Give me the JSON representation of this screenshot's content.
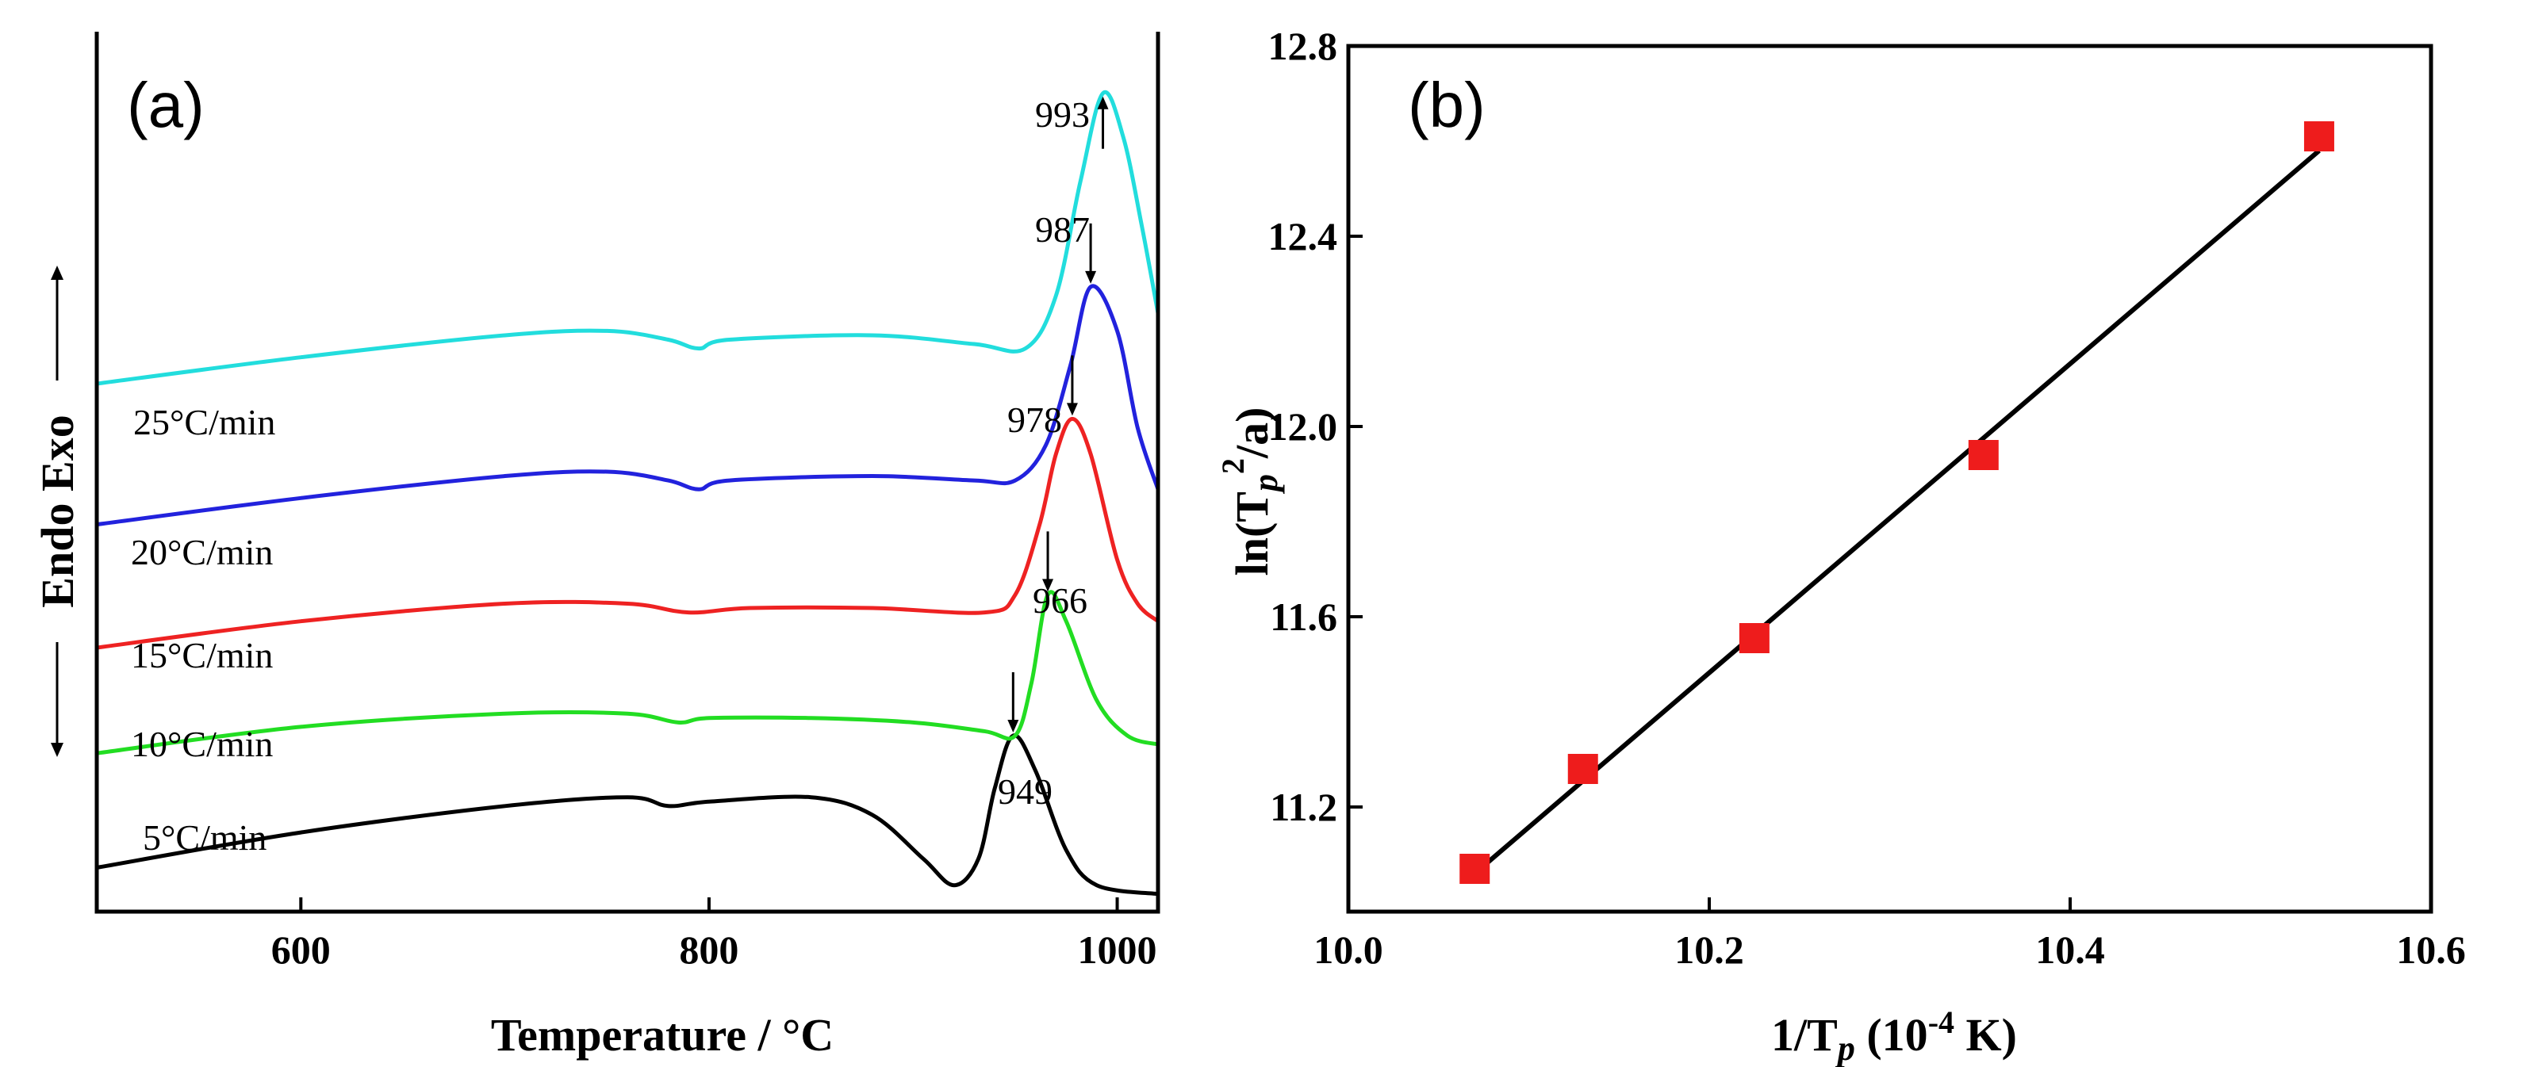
{
  "chart_data": [
    {
      "type": "line",
      "panel_label": "(a)",
      "xlabel": "Temperature / °C",
      "ylabel": "Endo Exo",
      "xlim": [
        500,
        1020
      ],
      "xticks": [
        600,
        800,
        1000
      ],
      "legend": "labels placed beside each curve",
      "grid": false,
      "series": [
        {
          "label": "5°C/min",
          "color": "#000000",
          "peak_label": "949",
          "peak_x": 949,
          "points": [
            [
              500,
              0.05
            ],
            [
              600,
              0.09
            ],
            [
              700,
              0.12
            ],
            [
              760,
              0.13
            ],
            [
              780,
              0.12
            ],
            [
              800,
              0.125
            ],
            [
              850,
              0.13
            ],
            [
              880,
              0.11
            ],
            [
              905,
              0.06
            ],
            [
              920,
              0.03
            ],
            [
              932,
              0.06
            ],
            [
              940,
              0.14
            ],
            [
              949,
              0.2
            ],
            [
              960,
              0.16
            ],
            [
              975,
              0.07
            ],
            [
              990,
              0.03
            ],
            [
              1020,
              0.02
            ]
          ]
        },
        {
          "label": "10°C/min",
          "color": "#22dd22",
          "peak_label": "966",
          "peak_x": 966,
          "points": [
            [
              500,
              0.18
            ],
            [
              600,
              0.21
            ],
            [
              700,
              0.225
            ],
            [
              760,
              0.225
            ],
            [
              785,
              0.215
            ],
            [
              800,
              0.22
            ],
            [
              850,
              0.22
            ],
            [
              900,
              0.215
            ],
            [
              935,
              0.205
            ],
            [
              950,
              0.2
            ],
            [
              958,
              0.26
            ],
            [
              966,
              0.36
            ],
            [
              975,
              0.33
            ],
            [
              990,
              0.24
            ],
            [
              1005,
              0.2
            ],
            [
              1020,
              0.19
            ]
          ]
        },
        {
          "label": "15°C/min",
          "color": "#ee2222",
          "peak_label": "978",
          "peak_x": 978,
          "points": [
            [
              500,
              0.3
            ],
            [
              600,
              0.33
            ],
            [
              700,
              0.35
            ],
            [
              760,
              0.35
            ],
            [
              790,
              0.34
            ],
            [
              820,
              0.345
            ],
            [
              880,
              0.345
            ],
            [
              935,
              0.34
            ],
            [
              950,
              0.36
            ],
            [
              962,
              0.44
            ],
            [
              970,
              0.52
            ],
            [
              978,
              0.56
            ],
            [
              987,
              0.52
            ],
            [
              1000,
              0.4
            ],
            [
              1010,
              0.35
            ],
            [
              1020,
              0.33
            ]
          ]
        },
        {
          "label": "20°C/min",
          "color": "#2222dd",
          "peak_label": "987",
          "peak_x": 987,
          "points": [
            [
              500,
              0.44
            ],
            [
              600,
              0.47
            ],
            [
              700,
              0.495
            ],
            [
              750,
              0.5
            ],
            [
              780,
              0.49
            ],
            [
              795,
              0.48
            ],
            [
              810,
              0.49
            ],
            [
              880,
              0.495
            ],
            [
              930,
              0.49
            ],
            [
              950,
              0.49
            ],
            [
              965,
              0.53
            ],
            [
              977,
              0.62
            ],
            [
              987,
              0.71
            ],
            [
              1000,
              0.66
            ],
            [
              1010,
              0.55
            ],
            [
              1020,
              0.48
            ]
          ]
        },
        {
          "label": "25°C/min",
          "color": "#22dddd",
          "peak_label": "993",
          "peak_x": 993,
          "points": [
            [
              500,
              0.6
            ],
            [
              600,
              0.63
            ],
            [
              700,
              0.655
            ],
            [
              750,
              0.66
            ],
            [
              780,
              0.65
            ],
            [
              795,
              0.64
            ],
            [
              810,
              0.65
            ],
            [
              880,
              0.655
            ],
            [
              930,
              0.645
            ],
            [
              955,
              0.64
            ],
            [
              970,
              0.7
            ],
            [
              982,
              0.83
            ],
            [
              993,
              0.93
            ],
            [
              1003,
              0.88
            ],
            [
              1012,
              0.78
            ],
            [
              1020,
              0.68
            ]
          ]
        }
      ]
    },
    {
      "type": "scatter",
      "panel_label": "(b)",
      "xlabel": "1/T",
      "xlabel_sub": "p",
      "xlabel_suffix": " (10",
      "xlabel_exp": "-4",
      "xlabel_end": " K)",
      "ylabel": "ln(T",
      "ylabel_sub": "p",
      "ylabel_sup": "2",
      "ylabel_end": "/a)",
      "xlim": [
        10.0,
        10.6
      ],
      "ylim": [
        10.98,
        12.8
      ],
      "xticks": [
        "10.0",
        "10.2",
        "10.4",
        "10.6"
      ],
      "yticks": [
        "11.2",
        "11.6",
        "12.0",
        "12.4",
        "12.8"
      ],
      "grid": false,
      "marker_color": "#ee1c1c",
      "points": [
        [
          10.07,
          11.07
        ],
        [
          10.13,
          11.28
        ],
        [
          10.225,
          11.555
        ],
        [
          10.352,
          11.94
        ],
        [
          10.538,
          12.61
        ]
      ],
      "fit_line": [
        [
          10.07,
          11.06
        ],
        [
          10.538,
          12.58
        ]
      ]
    }
  ]
}
